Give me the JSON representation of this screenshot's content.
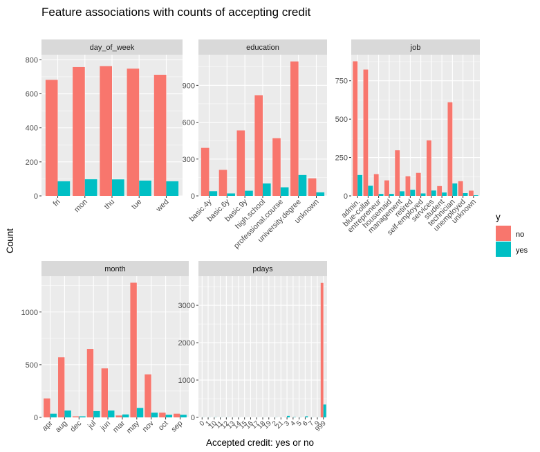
{
  "title": "Feature associations with counts of accepting credit",
  "xlabel": "Accepted credit: yes or no",
  "ylabel": "Count",
  "legend": {
    "title": "y",
    "entries": [
      {
        "label": "no",
        "color": "#F8766D"
      },
      {
        "label": "yes",
        "color": "#00BFC4"
      }
    ]
  },
  "colors": {
    "panel_bg": "#EBEBEB",
    "strip_bg": "#D9D9D9",
    "grid": "#FFFFFF",
    "text": "#4D4D4D"
  },
  "chart_data": [
    {
      "type": "bar",
      "facet": "day_of_week",
      "categories": [
        "fri",
        "mon",
        "thu",
        "tue",
        "wed"
      ],
      "series": [
        {
          "name": "no",
          "values": [
            682,
            757,
            763,
            748,
            712
          ]
        },
        {
          "name": "yes",
          "values": [
            86,
            98,
            97,
            90,
            86
          ]
        }
      ],
      "ylim": [
        0,
        830
      ],
      "yticks": [
        0,
        200,
        400,
        600,
        800
      ]
    },
    {
      "type": "bar",
      "facet": "education",
      "categories": [
        "basic.4y",
        "basic.6y",
        "basic.9y",
        "high.school",
        "professional.course",
        "university.degree",
        "unknown"
      ],
      "series": [
        {
          "name": "no",
          "values": [
            391,
            212,
            533,
            820,
            470,
            1095,
            143
          ]
        },
        {
          "name": "yes",
          "values": [
            38,
            20,
            42,
            101,
            70,
            170,
            29
          ]
        }
      ],
      "ylim": [
        0,
        1150
      ],
      "yticks": [
        0,
        300,
        600,
        900
      ]
    },
    {
      "type": "bar",
      "facet": "job",
      "categories": [
        "admin.",
        "blue-collar",
        "entrepreneur",
        "housemaid",
        "management",
        "retired",
        "self-employed",
        "services",
        "student",
        "technician",
        "unemployed",
        "unknown"
      ],
      "series": [
        {
          "name": "no",
          "values": [
            877,
            823,
            142,
            101,
            297,
            128,
            150,
            362,
            64,
            610,
            96,
            34
          ]
        },
        {
          "name": "yes",
          "values": [
            136,
            66,
            13,
            13,
            30,
            40,
            16,
            35,
            22,
            81,
            18,
            4
          ]
        }
      ],
      "ylim": [
        0,
        920
      ],
      "yticks": [
        0,
        250,
        500,
        750
      ]
    },
    {
      "type": "bar",
      "facet": "month",
      "categories": [
        "apr",
        "aug",
        "dec",
        "jul",
        "jun",
        "mar",
        "may",
        "nov",
        "oct",
        "sep"
      ],
      "series": [
        {
          "name": "no",
          "values": [
            180,
            570,
            10,
            650,
            465,
            18,
            1278,
            408,
            45,
            35
          ]
        },
        {
          "name": "yes",
          "values": [
            35,
            65,
            10,
            60,
            65,
            28,
            90,
            45,
            25,
            25
          ]
        }
      ],
      "ylim": [
        0,
        1340
      ],
      "yticks": [
        0,
        500,
        1000
      ]
    },
    {
      "type": "bar",
      "facet": "pdays",
      "categories": [
        "0",
        "1",
        "10",
        "11",
        "12",
        "13",
        "14",
        "15",
        "16",
        "17",
        "18",
        "19",
        "2",
        "21",
        "3",
        "4",
        "5",
        "6",
        "7",
        "9",
        "999"
      ],
      "series": [
        {
          "name": "no",
          "values": [
            0,
            0,
            0,
            0,
            0,
            0,
            0,
            0,
            0,
            0,
            0,
            0,
            0,
            0,
            4,
            2,
            1,
            1,
            0,
            1,
            3600
          ]
        },
        {
          "name": "yes",
          "values": [
            2,
            2,
            4,
            2,
            2,
            1,
            1,
            1,
            0,
            1,
            1,
            0,
            3,
            0,
            40,
            8,
            4,
            30,
            2,
            2,
            345
          ]
        }
      ],
      "ylim": [
        0,
        3780
      ],
      "yticks": [
        0,
        1000,
        2000,
        3000
      ]
    }
  ]
}
